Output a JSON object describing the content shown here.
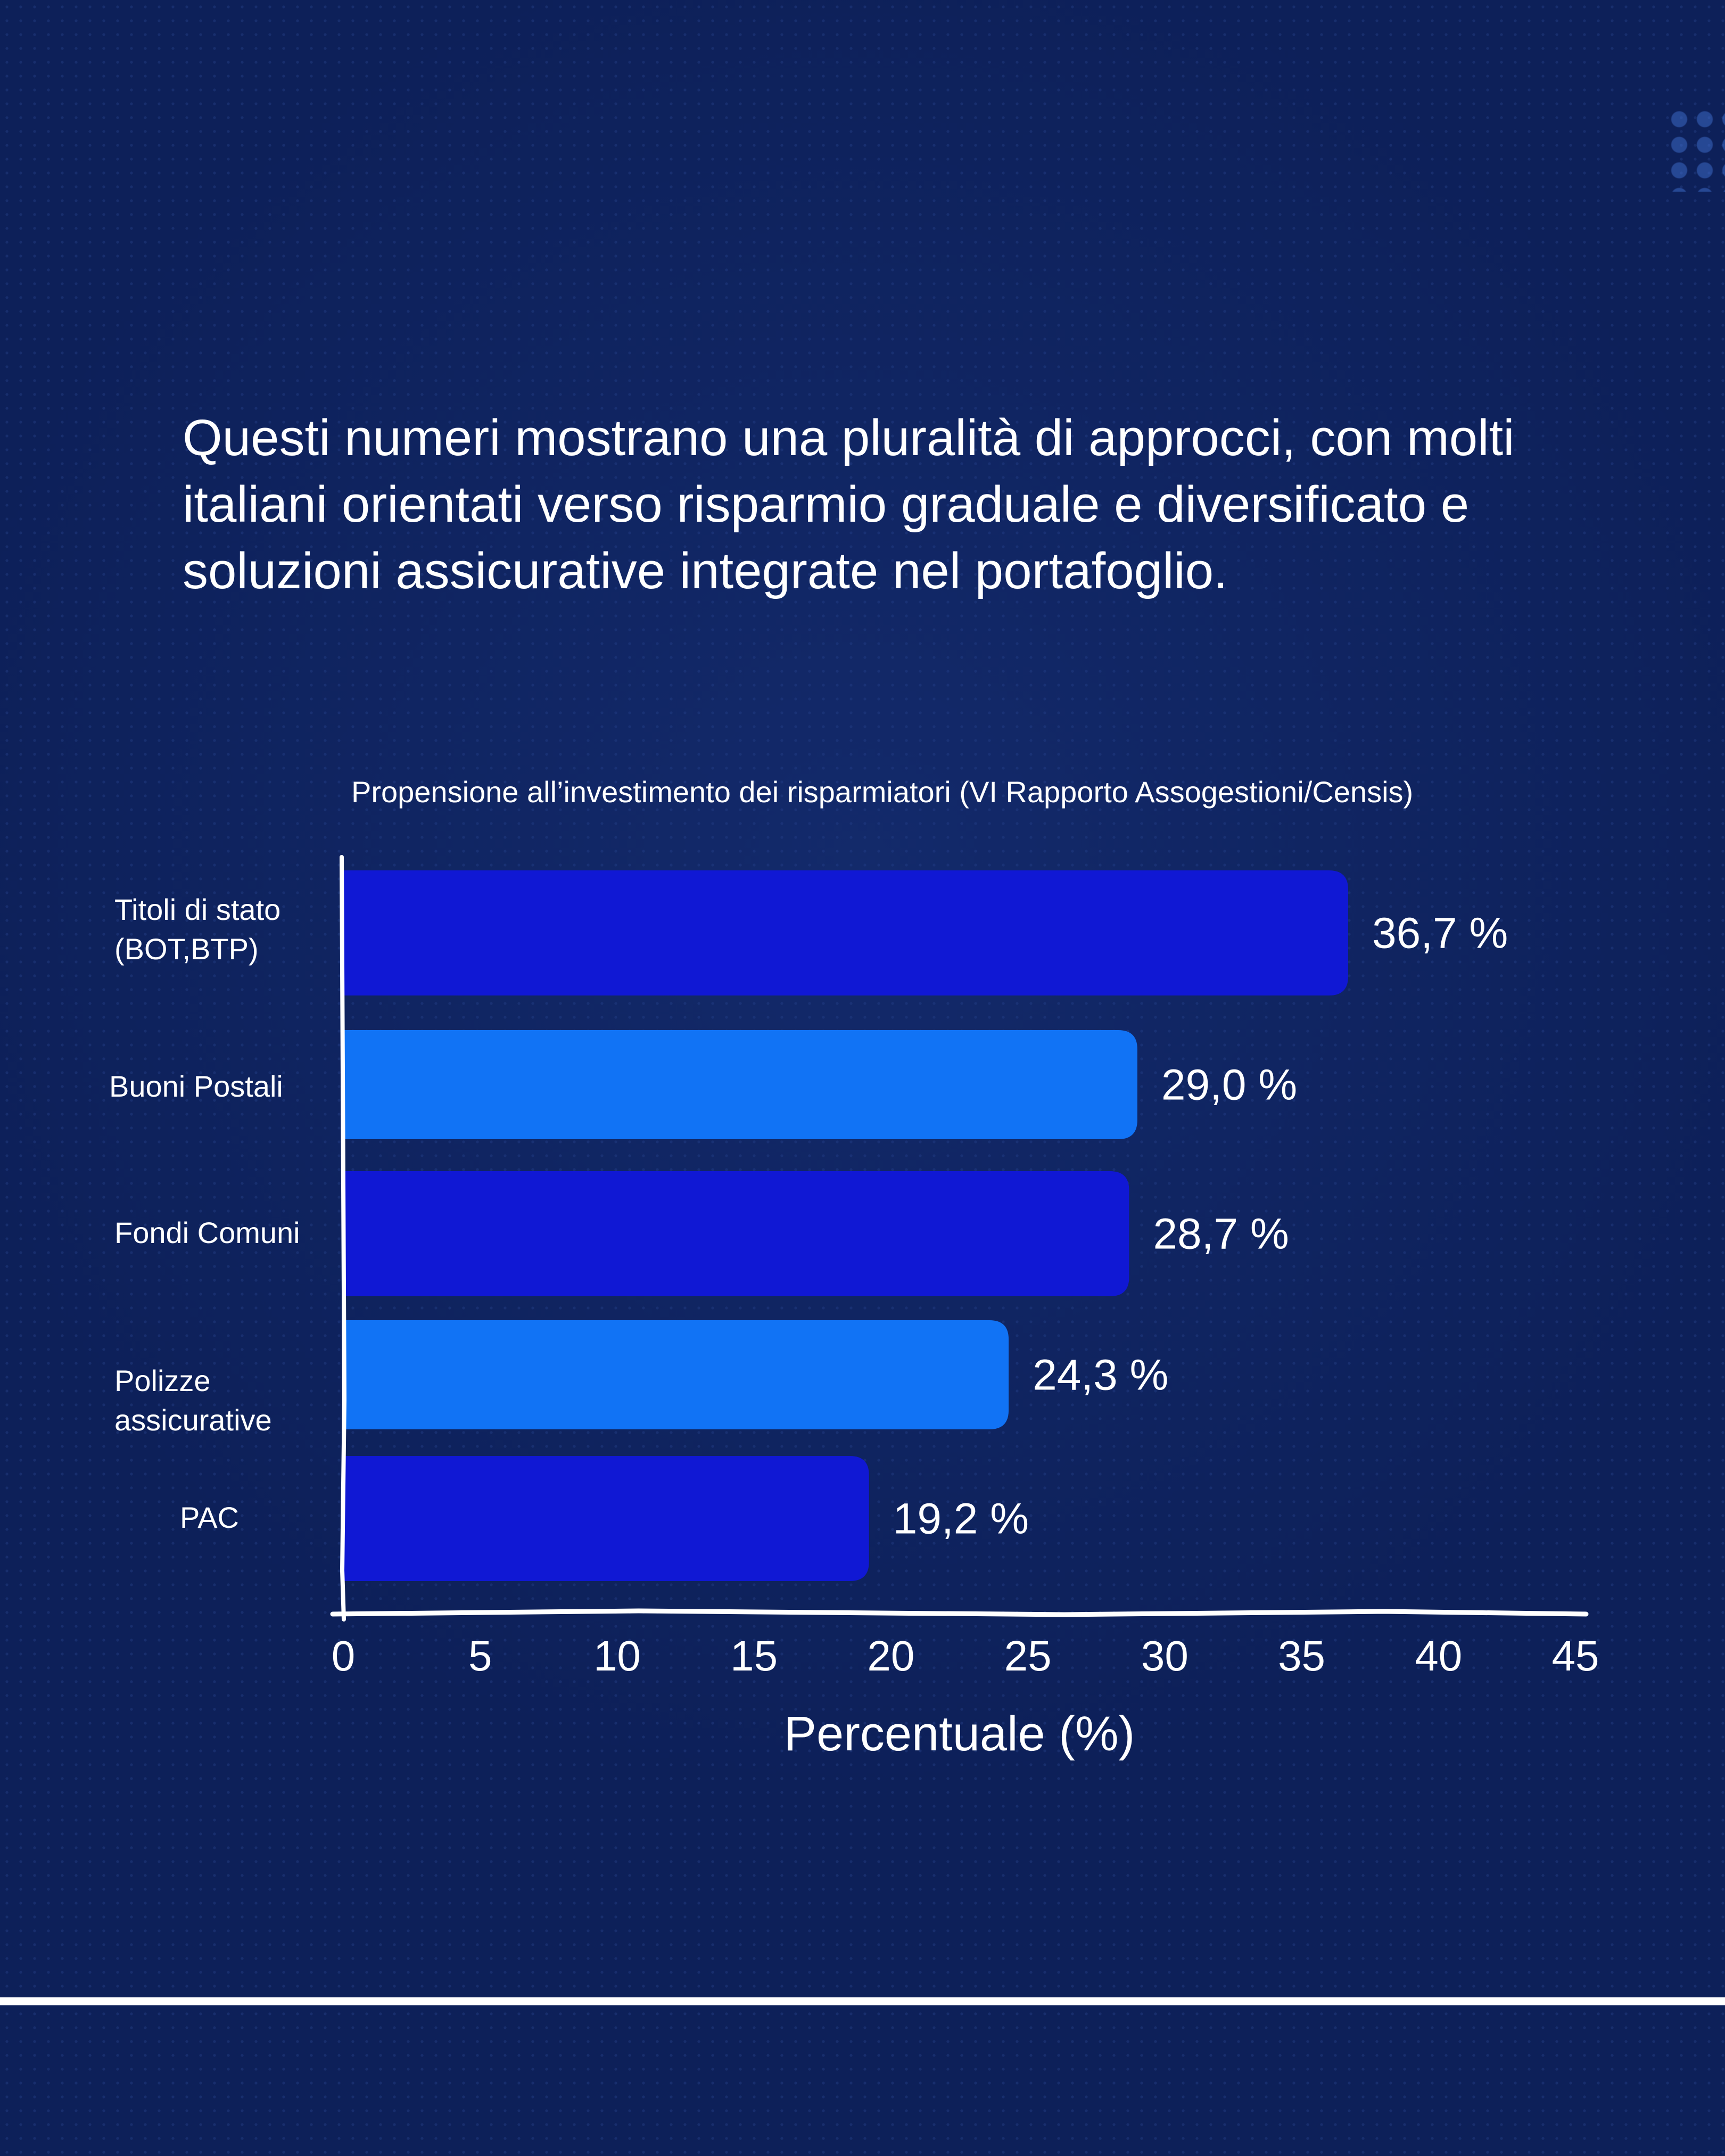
{
  "intro_text": "Questi numeri mostrano una pluralità di approcci, con molti italiani orientati verso risparmio graduale e diversificato e soluzioni assicurative integrate nel portafoglio.",
  "colors": {
    "background": "#0d2059",
    "bar_dark": "#1018d4",
    "bar_light": "#1173f5",
    "text": "#ffffff"
  },
  "chart_data": {
    "type": "bar",
    "orientation": "horizontal",
    "title": "Propensione all’investimento dei risparmiatori (VI Rapporto Assogestioni/Censis)",
    "xlabel": "Percentuale (%)",
    "ylabel": "",
    "categories": [
      [
        "Titoli di stato",
        "(BOT,BTP)"
      ],
      [
        "Buoni Postali"
      ],
      [
        "Fondi Comuni"
      ],
      [
        "Polizze",
        "assicurative"
      ],
      [
        "PAC"
      ]
    ],
    "values": [
      36.7,
      29.0,
      28.7,
      24.3,
      19.2
    ],
    "value_labels": [
      "36,7 %",
      "29,0 %",
      "28,7 %",
      "24,3 %",
      "19,2 %"
    ],
    "bar_colors": [
      "#1018d4",
      "#1173f5",
      "#1018d4",
      "#1173f5",
      "#1018d4"
    ],
    "xlim": [
      0,
      45
    ],
    "xticks": [
      "0",
      "5",
      "10",
      "15",
      "20",
      "25",
      "30",
      "35",
      "40",
      "45"
    ],
    "grid": false,
    "legend": false
  }
}
